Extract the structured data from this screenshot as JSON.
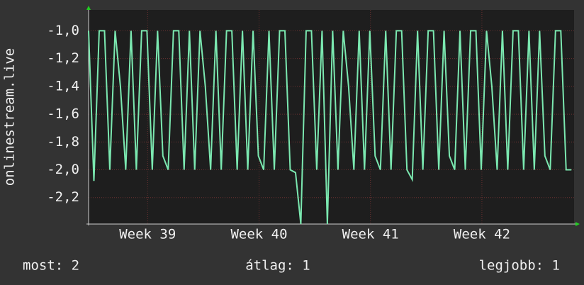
{
  "chart_data": {
    "type": "line",
    "y_label": "onlinestream.live",
    "x": [
      0,
      8,
      16,
      24,
      32,
      40,
      48,
      56,
      64,
      72,
      80,
      88,
      96,
      104,
      112,
      120,
      128,
      136,
      144,
      152,
      160,
      168,
      176,
      184,
      192,
      200,
      208,
      216,
      224,
      232,
      240,
      248,
      256,
      264,
      272,
      280,
      288,
      296,
      304,
      312,
      320,
      328,
      336,
      344,
      352,
      360,
      368,
      376,
      384,
      392,
      400,
      408,
      416,
      424,
      432,
      440,
      448,
      456,
      464,
      472,
      480,
      488,
      496,
      504,
      512,
      520,
      528,
      536,
      544,
      552,
      560,
      568,
      576,
      584,
      592,
      600,
      608,
      616,
      624,
      632,
      640,
      648,
      656,
      664,
      672,
      680,
      688,
      696,
      704,
      712,
      720,
      728
    ],
    "series": [
      {
        "color": "#7be8b0",
        "values": [
          -1,
          -2.08,
          -1,
          -1,
          -2,
          -1,
          -1.4,
          -2,
          -1,
          -2,
          -1,
          -1,
          -2,
          -1,
          -1.9,
          -2,
          -1,
          -1,
          -2,
          -1,
          -2,
          -1,
          -1.4,
          -2,
          -1,
          -2,
          -1,
          -1,
          -2,
          -1,
          -2,
          -1,
          -1.9,
          -2,
          -1,
          -2,
          -1,
          -1,
          -2,
          -2.02,
          -2.39,
          -1,
          -1,
          -2,
          -1,
          -2.39,
          -1,
          -2,
          -1,
          -1.4,
          -2,
          -1,
          -2,
          -1,
          -1.9,
          -2,
          -1,
          -2,
          -1,
          -1,
          -2,
          -2.07,
          -1,
          -2,
          -1,
          -1,
          -2,
          -1,
          -1.9,
          -2,
          -1,
          -2,
          -1,
          -1,
          -2,
          -1,
          -1.4,
          -2,
          -1,
          -2,
          -1,
          -1,
          -2,
          -1,
          -2,
          -1,
          -1.9,
          -2,
          -1,
          -1,
          -2,
          -2
        ]
      }
    ],
    "xlim": [
      0,
      732
    ],
    "xticks": [
      {
        "value": 89,
        "label": "Week 39"
      },
      {
        "value": 257,
        "label": "Week 40"
      },
      {
        "value": 425,
        "label": "Week 41"
      },
      {
        "value": 593,
        "label": "Week 42"
      }
    ],
    "ylim": [
      -2.39,
      -0.85
    ],
    "yticks": [
      {
        "value": -1,
        "label": "-1,0"
      },
      {
        "value": -1.2,
        "label": "-1,2"
      },
      {
        "value": -1.4,
        "label": "-1,4"
      },
      {
        "value": -1.6,
        "label": "-1,6"
      },
      {
        "value": -1.8,
        "label": "-1,8"
      },
      {
        "value": -2,
        "label": "-2,0"
      },
      {
        "value": -2.2,
        "label": "-2,2"
      }
    ],
    "grid": true,
    "stats": [
      "most: 2",
      "átlag: 1",
      "legjobb: 1"
    ]
  }
}
